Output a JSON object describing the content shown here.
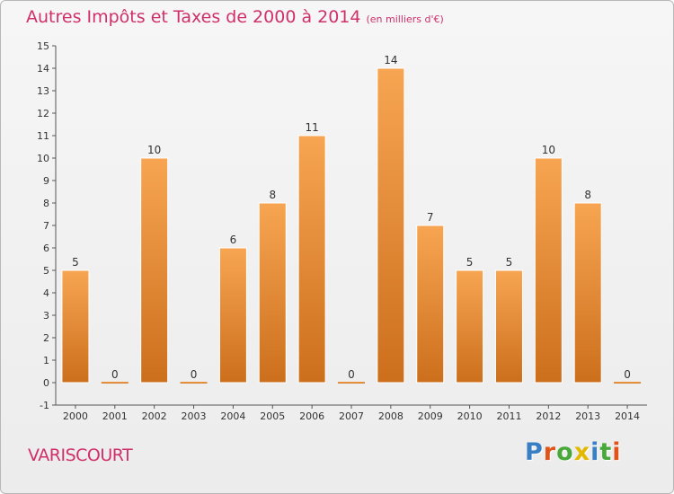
{
  "chart_data": {
    "type": "bar",
    "title": "Autres Impôts et Taxes de 2000 à 2014",
    "subtitle": "(en milliers d'€)",
    "categories": [
      "2000",
      "2001",
      "2002",
      "2003",
      "2004",
      "2005",
      "2006",
      "2007",
      "2008",
      "2009",
      "2010",
      "2011",
      "2012",
      "2013",
      "2014"
    ],
    "values": [
      5,
      0,
      10,
      0,
      6,
      8,
      11,
      0,
      14,
      7,
      5,
      5,
      10,
      8,
      0
    ],
    "data_labels": [
      "5",
      "0",
      "10",
      "0",
      "6",
      "8",
      "11",
      "0",
      "14",
      "7",
      "5",
      "5",
      "10",
      "8",
      "0"
    ],
    "ylim": [
      -1,
      15
    ],
    "y_ticks": [
      -1,
      0,
      1,
      2,
      3,
      4,
      5,
      6,
      7,
      8,
      9,
      10,
      11,
      12,
      13,
      14,
      15
    ],
    "grid": false,
    "bar_color_top": "#f7a552",
    "bar_color_bottom": "#cc6f1c"
  },
  "footer": {
    "commune": "VARISCOURT",
    "brand_letters": [
      "P",
      "r",
      "o",
      "x",
      "i",
      "t",
      "i"
    ],
    "brand_colors": [
      "#3a7fc4",
      "#e0541a",
      "#49a83a",
      "#e4b800",
      "#3a7fc4",
      "#49a83a",
      "#e0541a"
    ]
  }
}
